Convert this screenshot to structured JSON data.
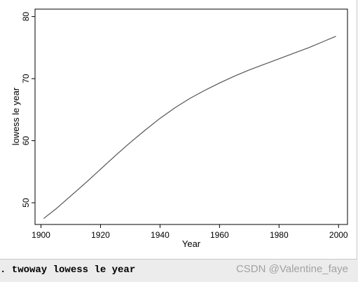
{
  "chart_data": {
    "type": "line",
    "xlabel": "Year",
    "ylabel": "lowess le year",
    "xlim": [
      1898,
      2003
    ],
    "ylim": [
      46.5,
      81.2
    ],
    "xticks": [
      1900,
      1920,
      1940,
      1960,
      1980,
      2000
    ],
    "yticks": [
      50,
      60,
      70,
      80
    ],
    "grid": false,
    "series": [
      {
        "color": "#555555",
        "x": [
          1901,
          1905,
          1910,
          1915,
          1920,
          1925,
          1930,
          1935,
          1940,
          1945,
          1950,
          1955,
          1960,
          1965,
          1970,
          1975,
          1980,
          1985,
          1990,
          1995,
          1999
        ],
        "y": [
          47.5,
          49.0,
          51.1,
          53.2,
          55.4,
          57.6,
          59.7,
          61.7,
          63.6,
          65.3,
          66.8,
          68.1,
          69.3,
          70.4,
          71.4,
          72.3,
          73.2,
          74.1,
          75.0,
          76.0,
          76.8
        ]
      }
    ]
  },
  "command_bar": {
    "command_text": ". twoway lowess le year",
    "watermark": "CSDN @Valentine_faye"
  }
}
